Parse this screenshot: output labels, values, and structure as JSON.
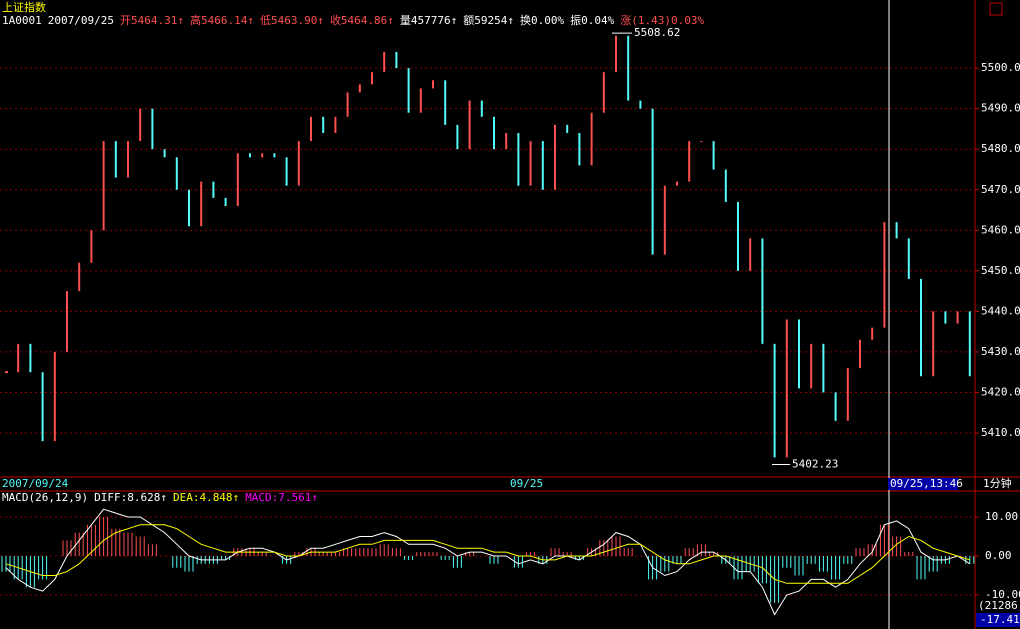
{
  "chart_data": [
    {
      "type": "candlestick",
      "title": "上证指数",
      "info": [
        "1A0001",
        "2007/09/25",
        "开5464.31↑",
        "高5466.14↑",
        "低5463.90↑",
        "收5464.86↑",
        "量457776↑",
        "额59254↑",
        "换0.00%",
        "振0.04%",
        "涨(1.43)0.03%"
      ],
      "up_color": "#ff5050",
      "down_color": "#54fcfc",
      "values": [
        5425,
        5432,
        5425,
        5408,
        5430,
        5445,
        5452,
        5460,
        5482,
        5473,
        5482,
        5490,
        5480,
        5478,
        5470,
        5461,
        5472,
        5468,
        5466,
        5479,
        5478,
        5479,
        5478,
        5471,
        5482,
        5488,
        5484,
        5488,
        5494,
        5496,
        5499,
        5504,
        5500,
        5489,
        5495,
        5497,
        5486,
        5480,
        5492,
        5488,
        5480,
        5484,
        5471,
        5482,
        5470,
        5486,
        5484,
        5476,
        5489,
        5499,
        5508,
        5492,
        5490,
        5454,
        5471,
        5472,
        5482,
        5482,
        5475,
        5467,
        5450,
        5458,
        5432,
        5404,
        5438,
        5421,
        5432,
        5420,
        5413,
        5426,
        5433,
        5436,
        5462,
        5458,
        5448,
        5424,
        5440,
        5437,
        5440,
        5424
      ],
      "ylim": [
        5399.4,
        5516.8
      ],
      "yticks": [
        {
          "value": 5410,
          "label": "5410.0"
        },
        {
          "value": 5420,
          "label": "5420.0"
        },
        {
          "value": 5430,
          "label": "5430.0"
        },
        {
          "value": 5440,
          "label": "5440.0"
        },
        {
          "value": 5450,
          "label": "5450.0"
        },
        {
          "value": 5460,
          "label": "5460.0"
        },
        {
          "value": 5470,
          "label": "5470.0"
        },
        {
          "value": 5480,
          "label": "5480.0"
        },
        {
          "value": 5490,
          "label": "5490.0"
        },
        {
          "value": 5500,
          "label": "5500.0"
        }
      ],
      "high_mark": 5508.62,
      "low_mark": 5402.23,
      "x_labels": [
        "2007/09/24",
        "09/25",
        "09/25,13:46"
      ],
      "period": "1分钟",
      "grid": true
    },
    {
      "type": "macd",
      "legend": [
        "MACD(26,12,9)",
        "DIFF:8.628↑",
        "DEA:4.848↑",
        "MACD:7.561↑"
      ],
      "series": [
        {
          "color": "#ff5050",
          "values": [
            -4,
            -6,
            -8,
            -6,
            0,
            4,
            6,
            8,
            10,
            7,
            6,
            5,
            3,
            0,
            -3,
            -4,
            -2,
            -2,
            -1,
            2,
            2,
            1,
            0,
            -2,
            1,
            2,
            1,
            1,
            2,
            2,
            2,
            3,
            2,
            -1,
            1,
            1,
            -1,
            -3,
            1,
            0,
            -2,
            0,
            -3,
            1,
            -2,
            2,
            1,
            -1,
            2,
            4,
            5,
            2,
            0,
            -6,
            -4,
            -2,
            2,
            3,
            1,
            -2,
            -6,
            -4,
            -7,
            -12,
            -3,
            -5,
            -2,
            -4,
            -6,
            -2,
            2,
            3,
            8,
            5,
            1,
            -6,
            -4,
            -2,
            0,
            -2
          ]
        },
        {
          "color": "#ffffff",
          "values": [
            -3,
            -6,
            -8,
            -9,
            -6,
            0,
            4,
            8,
            12,
            11,
            10,
            10,
            8,
            6,
            3,
            0,
            -1,
            -1,
            -1,
            1,
            2,
            2,
            1,
            -1,
            0,
            2,
            2,
            3,
            4,
            5,
            5,
            6,
            5,
            3,
            3,
            3,
            2,
            0,
            1,
            1,
            0,
            0,
            -2,
            -1,
            -2,
            0,
            0,
            -1,
            1,
            3,
            6,
            5,
            3,
            -3,
            -5,
            -4,
            -1,
            1,
            1,
            -1,
            -4,
            -4,
            -8,
            -15,
            -10,
            -9,
            -6,
            -6,
            -8,
            -6,
            -2,
            1,
            8,
            9,
            7,
            1,
            -1,
            -1,
            0,
            -2
          ]
        },
        {
          "color": "#ffff00",
          "values": [
            -2,
            -3,
            -4,
            -5,
            -5,
            -4,
            -2,
            1,
            4,
            6,
            7,
            8,
            8,
            8,
            7,
            5,
            3,
            2,
            1,
            1,
            1,
            1,
            1,
            0,
            0,
            1,
            1,
            1,
            2,
            3,
            3,
            4,
            4,
            4,
            4,
            4,
            3,
            2,
            2,
            2,
            1,
            1,
            0,
            0,
            -1,
            -1,
            0,
            0,
            0,
            1,
            2,
            3,
            3,
            1,
            -1,
            -2,
            -2,
            -1,
            0,
            0,
            -1,
            -2,
            -3,
            -6,
            -7,
            -7,
            -7,
            -7,
            -7,
            -7,
            -5,
            -3,
            0,
            3,
            5,
            4,
            2,
            1,
            0,
            -1
          ]
        }
      ],
      "down_color": "#54fcfc",
      "ylim": [
        -18.46,
        16.41
      ],
      "yticks": [
        {
          "value": 10,
          "label": "10.00"
        },
        {
          "value": 0,
          "label": "0.00"
        },
        {
          "value": -10,
          "label": "-10.00"
        }
      ],
      "right_labels": [
        "(21286)",
        "-17.41"
      ]
    }
  ]
}
